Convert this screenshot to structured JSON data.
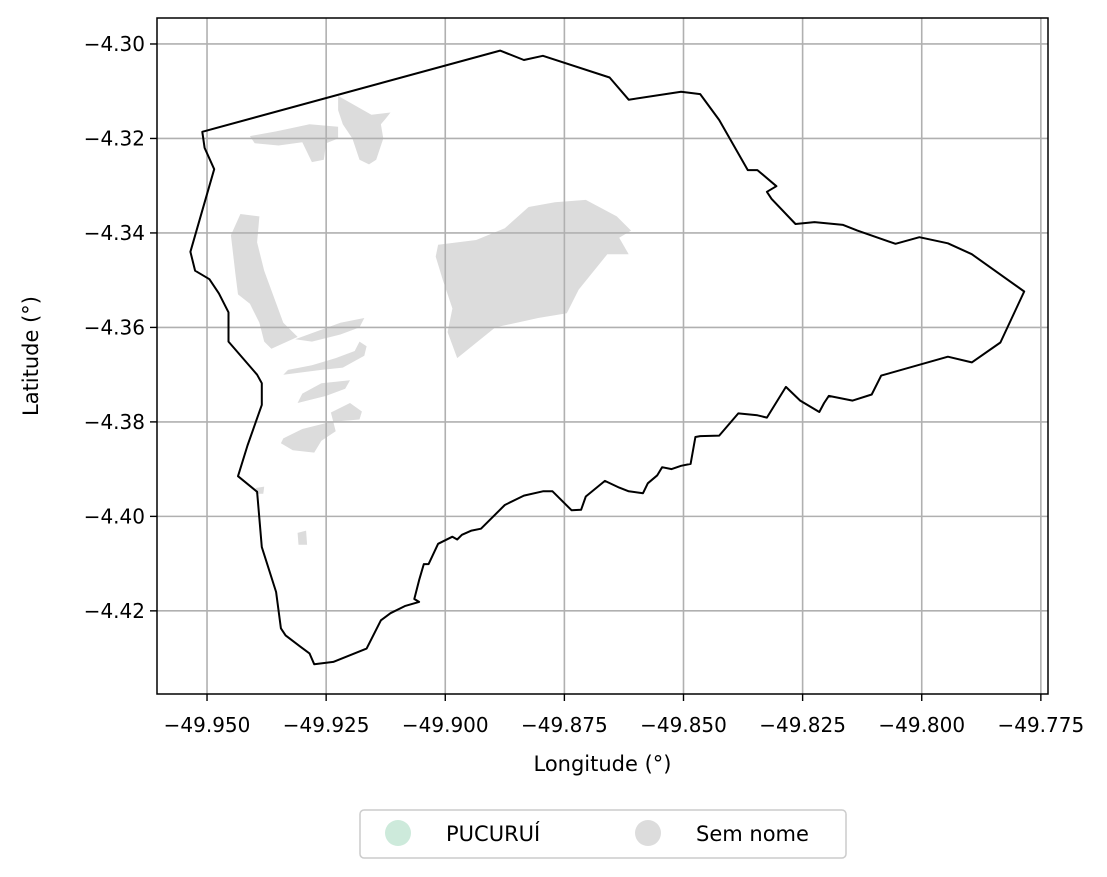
{
  "chart_data": {
    "type": "map",
    "xlabel": "Longitude (°)",
    "ylabel": "Latitude (°)",
    "xlim": [
      -49.9605,
      -49.7735
    ],
    "ylim": [
      -4.4376,
      -4.2945
    ],
    "grid": true,
    "legend_placement": "bottom-center",
    "x_ticks": [
      {
        "value": -49.95,
        "label": "−49.950"
      },
      {
        "value": -49.925,
        "label": "−49.925"
      },
      {
        "value": -49.9,
        "label": "−49.900"
      },
      {
        "value": -49.875,
        "label": "−49.875"
      },
      {
        "value": -49.85,
        "label": "−49.850"
      },
      {
        "value": -49.825,
        "label": "−49.825"
      },
      {
        "value": -49.8,
        "label": "−49.800"
      },
      {
        "value": -49.775,
        "label": "−49.775"
      }
    ],
    "y_ticks": [
      {
        "value": -4.3,
        "label": "−4.30"
      },
      {
        "value": -4.32,
        "label": "−4.32"
      },
      {
        "value": -4.34,
        "label": "−4.34"
      },
      {
        "value": -4.36,
        "label": "−4.36"
      },
      {
        "value": -4.38,
        "label": "−4.38"
      },
      {
        "value": -4.4,
        "label": "−4.40"
      },
      {
        "value": -4.42,
        "label": "−4.42"
      }
    ],
    "legend": [
      {
        "label": "PUCURUÍ",
        "color": "#cdeadb"
      },
      {
        "label": "Sem nome",
        "color": "#dcdcdc"
      }
    ],
    "boundary": [
      [
        -49.951,
        -4.3186
      ],
      [
        -49.8885,
        -4.3014
      ],
      [
        -49.8835,
        -4.3034
      ],
      [
        -49.8795,
        -4.3025
      ],
      [
        -49.8655,
        -4.3071
      ],
      [
        -49.8615,
        -4.3118
      ],
      [
        -49.8505,
        -4.3101
      ],
      [
        -49.8465,
        -4.3106
      ],
      [
        -49.8425,
        -4.3161
      ],
      [
        -49.8365,
        -4.3267
      ],
      [
        -49.8345,
        -4.3267
      ],
      [
        -49.8305,
        -4.3301
      ],
      [
        -49.8325,
        -4.3313
      ],
      [
        -49.8315,
        -4.3328
      ],
      [
        -49.8265,
        -4.3381
      ],
      [
        -49.8225,
        -4.3377
      ],
      [
        -49.8165,
        -4.3383
      ],
      [
        -49.8135,
        -4.3395
      ],
      [
        -49.8055,
        -4.3423
      ],
      [
        -49.8005,
        -4.3409
      ],
      [
        -49.7945,
        -4.3422
      ],
      [
        -49.7895,
        -4.3445
      ],
      [
        -49.7785,
        -4.3524
      ],
      [
        -49.7835,
        -4.3632
      ],
      [
        -49.7895,
        -4.3674
      ],
      [
        -49.7945,
        -4.3662
      ],
      [
        -49.8085,
        -4.3702
      ],
      [
        -49.8105,
        -4.3742
      ],
      [
        -49.8145,
        -4.3755
      ],
      [
        -49.8195,
        -4.3745
      ],
      [
        -49.8205,
        -4.376
      ],
      [
        -49.8215,
        -4.3779
      ],
      [
        -49.8255,
        -4.3755
      ],
      [
        -49.8285,
        -4.3726
      ],
      [
        -49.8325,
        -4.3791
      ],
      [
        -49.8345,
        -4.3786
      ],
      [
        -49.8385,
        -4.3782
      ],
      [
        -49.8425,
        -4.3829
      ],
      [
        -49.8465,
        -4.383
      ],
      [
        -49.8475,
        -4.3832
      ],
      [
        -49.8485,
        -4.3889
      ],
      [
        -49.8505,
        -4.3893
      ],
      [
        -49.8525,
        -4.39
      ],
      [
        -49.8545,
        -4.3896
      ],
      [
        -49.8555,
        -4.3913
      ],
      [
        -49.8575,
        -4.393
      ],
      [
        -49.8585,
        -4.3951
      ],
      [
        -49.8615,
        -4.3947
      ],
      [
        -49.8635,
        -4.3939
      ],
      [
        -49.8665,
        -4.3925
      ],
      [
        -49.8705,
        -4.3958
      ],
      [
        -49.8715,
        -4.3986
      ],
      [
        -49.8735,
        -4.3987
      ],
      [
        -49.8775,
        -4.3947
      ],
      [
        -49.8795,
        -4.3947
      ],
      [
        -49.8835,
        -4.3956
      ],
      [
        -49.8875,
        -4.3976
      ],
      [
        -49.8925,
        -4.4026
      ],
      [
        -49.8945,
        -4.403
      ],
      [
        -49.8965,
        -4.4039
      ],
      [
        -49.8975,
        -4.4049
      ],
      [
        -49.8985,
        -4.4043
      ],
      [
        -49.9015,
        -4.4058
      ],
      [
        -49.9035,
        -4.4101
      ],
      [
        -49.9045,
        -4.4101
      ],
      [
        -49.9055,
        -4.4135
      ],
      [
        -49.9065,
        -4.4175
      ],
      [
        -49.9055,
        -4.4181
      ],
      [
        -49.9085,
        -4.419
      ],
      [
        -49.9115,
        -4.4205
      ],
      [
        -49.9135,
        -4.422
      ],
      [
        -49.9165,
        -4.428
      ],
      [
        -49.9235,
        -4.4308
      ],
      [
        -49.9275,
        -4.4313
      ],
      [
        -49.9285,
        -4.429
      ],
      [
        -49.9305,
        -4.4275
      ],
      [
        -49.9335,
        -4.4252
      ],
      [
        -49.9345,
        -4.4237
      ],
      [
        -49.9355,
        -4.416
      ],
      [
        -49.9385,
        -4.4065
      ],
      [
        -49.9395,
        -4.3948
      ],
      [
        -49.9435,
        -4.3915
      ],
      [
        -49.9415,
        -4.385
      ],
      [
        -49.9385,
        -4.3764
      ],
      [
        -49.9385,
        -4.3718
      ],
      [
        -49.9395,
        -4.37
      ],
      [
        -49.9455,
        -4.363
      ],
      [
        -49.9455,
        -4.3568
      ],
      [
        -49.9475,
        -4.3528
      ],
      [
        -49.9495,
        -4.3498
      ],
      [
        -49.9525,
        -4.348
      ],
      [
        -49.9535,
        -4.344
      ],
      [
        -49.9515,
        -4.337
      ],
      [
        -49.9485,
        -4.3265
      ],
      [
        -49.9505,
        -4.322
      ],
      [
        -49.951,
        -4.3186
      ]
    ],
    "regions": [
      {
        "name": "Sem nome",
        "color": "#dcdcdc",
        "polygon": [
          [
            -49.9225,
            -4.311
          ],
          [
            -49.9155,
            -4.315
          ],
          [
            -49.9115,
            -4.3145
          ],
          [
            -49.9125,
            -4.3158
          ],
          [
            -49.9135,
            -4.317
          ],
          [
            -49.913,
            -4.32
          ],
          [
            -49.9145,
            -4.3245
          ],
          [
            -49.916,
            -4.3255
          ],
          [
            -49.918,
            -4.3245
          ],
          [
            -49.9195,
            -4.32
          ],
          [
            -49.9215,
            -4.317
          ],
          [
            -49.9225,
            -4.314
          ]
        ]
      },
      {
        "name": "Sem nome",
        "color": "#dcdcdc",
        "polygon": [
          [
            -49.9225,
            -4.3175
          ],
          [
            -49.9285,
            -4.317
          ],
          [
            -49.9355,
            -4.3185
          ],
          [
            -49.941,
            -4.3195
          ],
          [
            -49.94,
            -4.321
          ],
          [
            -49.935,
            -4.3215
          ],
          [
            -49.93,
            -4.3208
          ],
          [
            -49.928,
            -4.325
          ],
          [
            -49.9255,
            -4.3245
          ],
          [
            -49.925,
            -4.321
          ],
          [
            -49.9225,
            -4.32
          ]
        ]
      },
      {
        "name": "Sem nome",
        "color": "#dcdcdc",
        "polygon": [
          [
            -49.9015,
            -4.3425
          ],
          [
            -49.8935,
            -4.3415
          ],
          [
            -49.8875,
            -4.339
          ],
          [
            -49.8825,
            -4.3345
          ],
          [
            -49.877,
            -4.3335
          ],
          [
            -49.8705,
            -4.333
          ],
          [
            -49.864,
            -4.3365
          ],
          [
            -49.861,
            -4.3395
          ],
          [
            -49.8635,
            -4.341
          ],
          [
            -49.8615,
            -4.3445
          ],
          [
            -49.866,
            -4.3445
          ],
          [
            -49.872,
            -4.352
          ],
          [
            -49.8745,
            -4.357
          ],
          [
            -49.8805,
            -4.358
          ],
          [
            -49.885,
            -4.359
          ],
          [
            -49.8895,
            -4.36
          ],
          [
            -49.8975,
            -4.3665
          ],
          [
            -49.8995,
            -4.361
          ],
          [
            -49.8985,
            -4.356
          ],
          [
            -49.9005,
            -4.35
          ],
          [
            -49.902,
            -4.345
          ]
        ]
      },
      {
        "name": "Sem nome",
        "color": "#dcdcdc",
        "polygon": [
          [
            -49.939,
            -4.3365
          ],
          [
            -49.943,
            -4.336
          ],
          [
            -49.945,
            -4.3405
          ],
          [
            -49.944,
            -4.349
          ],
          [
            -49.9435,
            -4.353
          ],
          [
            -49.941,
            -4.355
          ],
          [
            -49.939,
            -4.359
          ],
          [
            -49.938,
            -4.363
          ],
          [
            -49.9365,
            -4.3645
          ],
          [
            -49.931,
            -4.362
          ],
          [
            -49.934,
            -4.359
          ],
          [
            -49.938,
            -4.348
          ],
          [
            -49.9395,
            -4.342
          ]
        ]
      },
      {
        "name": "Sem nome",
        "color": "#dcdcdc",
        "polygon": [
          [
            -49.9315,
            -4.3625
          ],
          [
            -49.922,
            -4.359
          ],
          [
            -49.917,
            -4.358
          ],
          [
            -49.918,
            -4.36
          ],
          [
            -49.922,
            -4.3615
          ],
          [
            -49.928,
            -4.363
          ]
        ]
      },
      {
        "name": "Sem nome",
        "color": "#dcdcdc",
        "polygon": [
          [
            -49.934,
            -4.37
          ],
          [
            -49.926,
            -4.369
          ],
          [
            -49.9215,
            -4.3685
          ],
          [
            -49.917,
            -4.366
          ],
          [
            -49.9165,
            -4.364
          ],
          [
            -49.918,
            -4.363
          ],
          [
            -49.919,
            -4.365
          ],
          [
            -49.923,
            -4.3665
          ],
          [
            -49.928,
            -4.368
          ],
          [
            -49.933,
            -4.369
          ]
        ]
      },
      {
        "name": "Sem nome",
        "color": "#dcdcdc",
        "polygon": [
          [
            -49.931,
            -4.376
          ],
          [
            -49.925,
            -4.3745
          ],
          [
            -49.921,
            -4.373
          ],
          [
            -49.92,
            -4.3712
          ],
          [
            -49.926,
            -4.3718
          ],
          [
            -49.93,
            -4.374
          ]
        ]
      },
      {
        "name": "Sem nome",
        "color": "#dcdcdc",
        "polygon": [
          [
            -49.934,
            -4.3835
          ],
          [
            -49.93,
            -4.3815
          ],
          [
            -49.924,
            -4.38
          ],
          [
            -49.918,
            -4.3795
          ],
          [
            -49.9175,
            -4.3778
          ],
          [
            -49.92,
            -4.376
          ],
          [
            -49.924,
            -4.378
          ],
          [
            -49.923,
            -4.382
          ],
          [
            -49.926,
            -4.384
          ],
          [
            -49.9275,
            -4.3865
          ],
          [
            -49.932,
            -4.386
          ],
          [
            -49.9345,
            -4.3845
          ]
        ]
      },
      {
        "name": "Sem nome",
        "color": "#dcdcdc",
        "polygon": [
          [
            -49.9398,
            -4.394
          ],
          [
            -49.938,
            -4.3937
          ],
          [
            -49.9382,
            -4.3952
          ],
          [
            -49.9398,
            -4.3952
          ]
        ]
      },
      {
        "name": "Sem nome",
        "color": "#dcdcdc",
        "polygon": [
          [
            -49.931,
            -4.4035
          ],
          [
            -49.9292,
            -4.403
          ],
          [
            -49.929,
            -4.406
          ],
          [
            -49.9308,
            -4.406
          ]
        ]
      }
    ]
  }
}
